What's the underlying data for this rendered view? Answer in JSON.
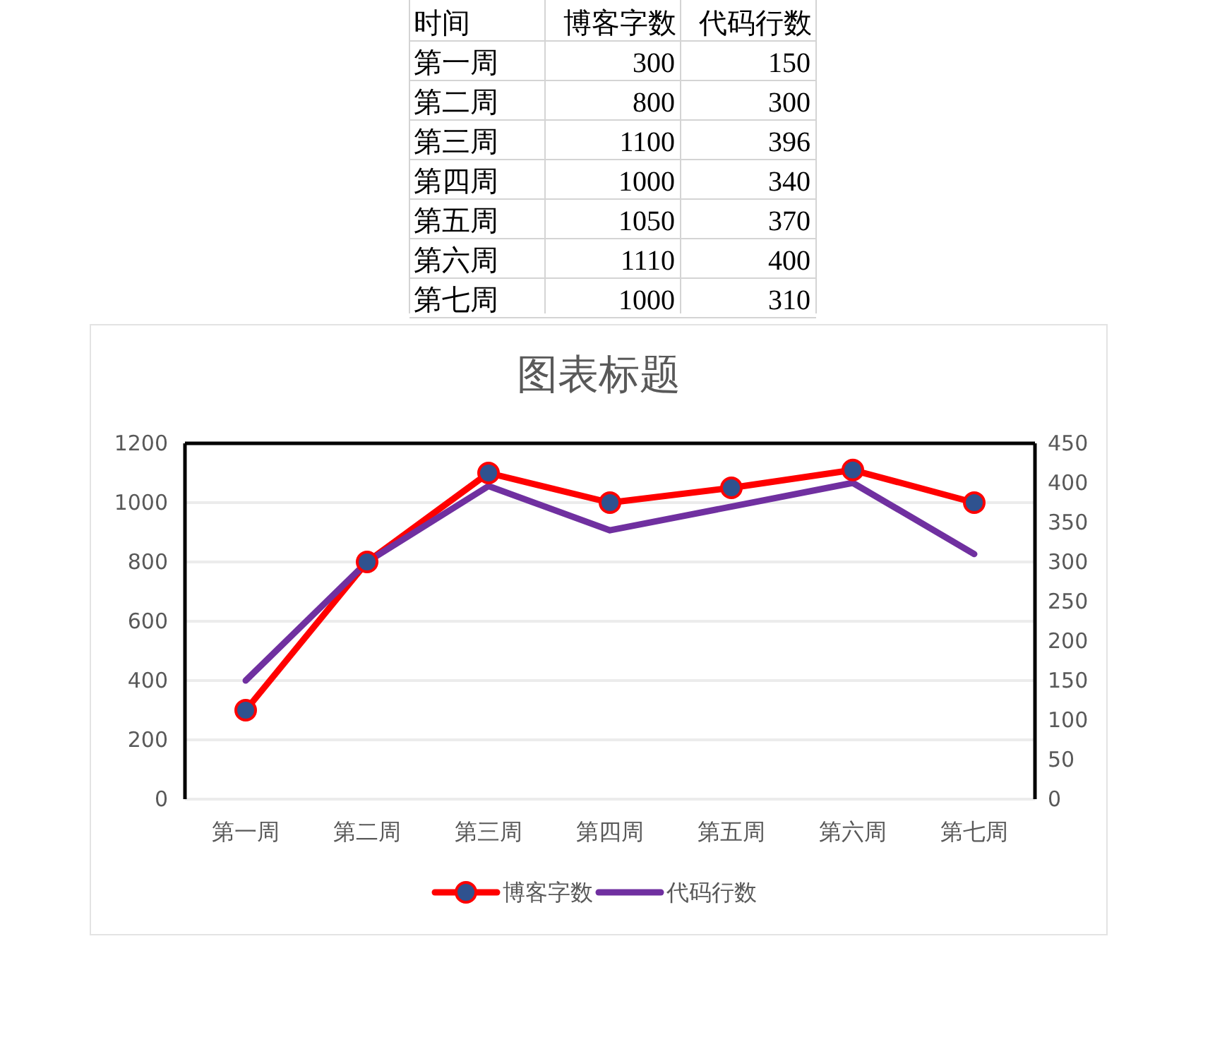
{
  "chart_data": [
    {
      "type": "other",
      "annotations": [
        "时间"
      ],
      "categories": [
        "第一周",
        "第二周",
        "第三周",
        "第四周",
        "第五周",
        "第六周",
        "第七周"
      ],
      "series": [
        {
          "name": "博客字数",
          "values": [
            300,
            800,
            1100,
            1000,
            1050,
            1110,
            1000
          ]
        },
        {
          "name": "代码行数",
          "values": [
            150,
            300,
            396,
            340,
            370,
            400,
            310
          ]
        }
      ],
      "data_labels": true
    },
    {
      "type": "line",
      "title": "图表标题",
      "categories": [
        "第一周",
        "第二周",
        "第三周",
        "第四周",
        "第五周",
        "第六周",
        "第七周"
      ],
      "series": [
        {
          "name": "博客字数",
          "color": "#ff0000",
          "marker": "circle",
          "values": [
            300,
            800,
            1100,
            1000,
            1050,
            1110,
            1000
          ]
        },
        {
          "name": "代码行数",
          "color": "#7030a0",
          "marker": "none",
          "axis": "y2",
          "values": [
            150,
            300,
            396,
            340,
            370,
            400,
            310
          ]
        }
      ],
      "ylim": [
        0,
        1200
      ],
      "yticks": [
        0,
        200,
        400,
        600,
        800,
        1000,
        1200
      ],
      "y2lim": [
        0,
        450
      ],
      "y2ticks": [
        0,
        50,
        100,
        150,
        200,
        250,
        300,
        350,
        400,
        450
      ],
      "grid": "y",
      "legend": "bottom"
    }
  ]
}
